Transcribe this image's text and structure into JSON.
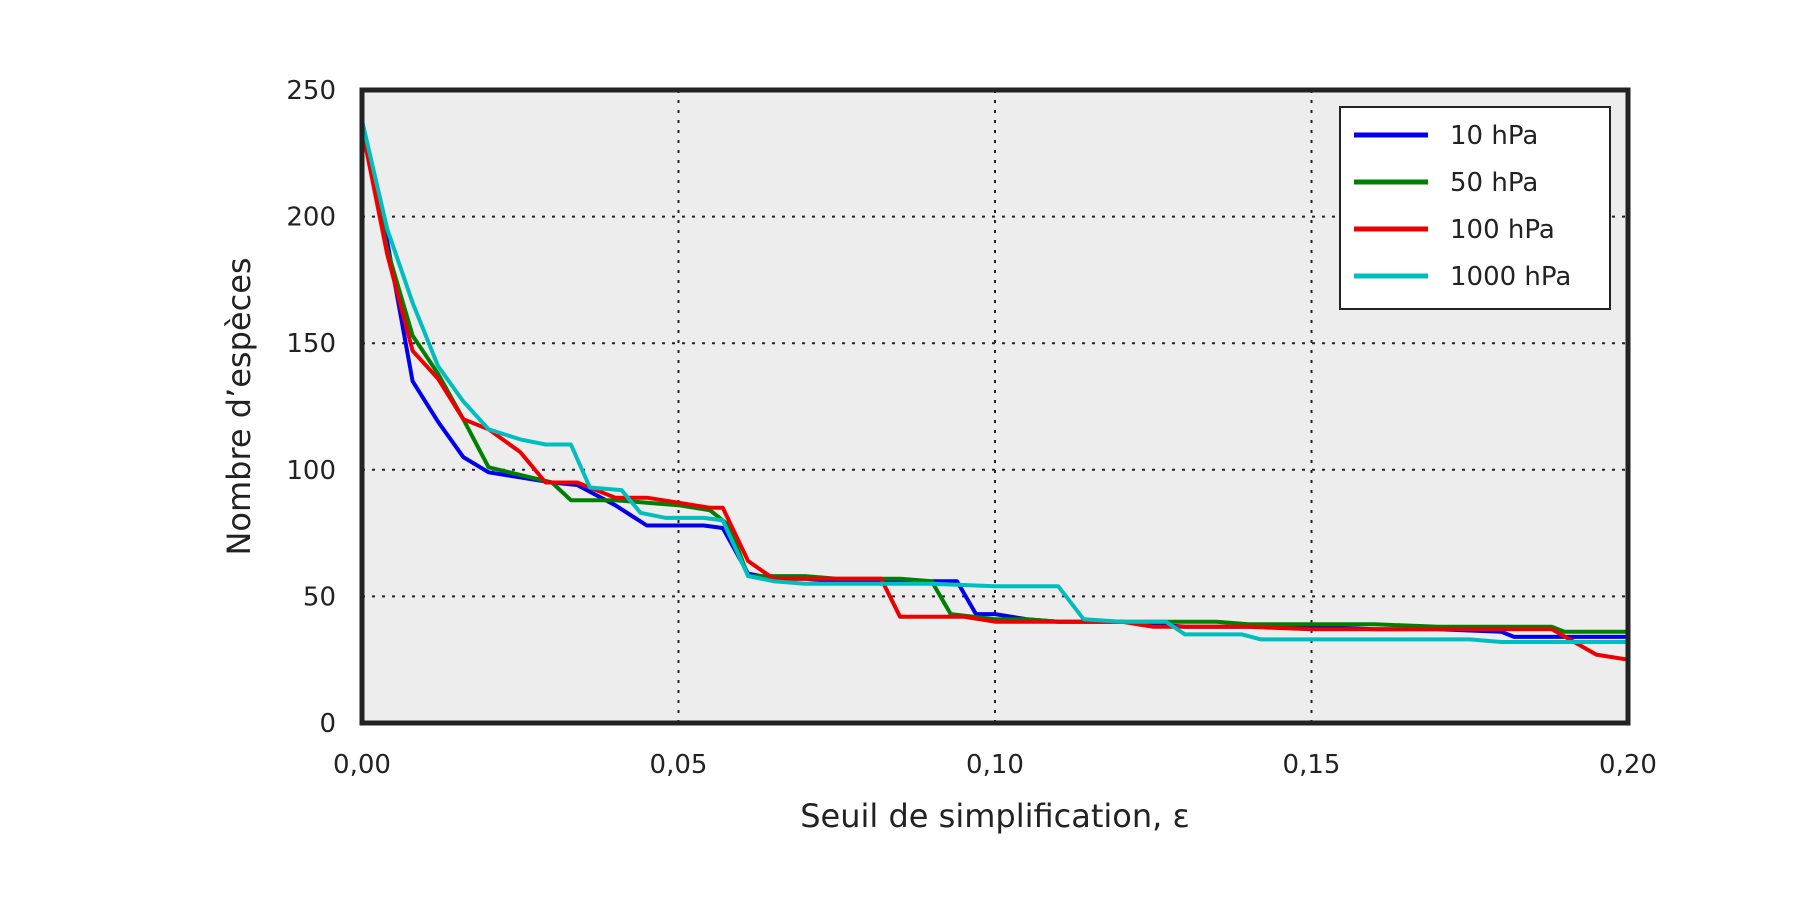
{
  "chart_data": {
    "type": "line",
    "title": "",
    "xlabel": "Seuil de simplification, ε",
    "ylabel": "Nombre d’espèces",
    "xlim": [
      0,
      0.2
    ],
    "ylim": [
      0,
      250
    ],
    "xticks": [
      0,
      0.05,
      0.1,
      0.15,
      0.2
    ],
    "xtick_labels": [
      "0,00",
      "0,05",
      "0,10",
      "0,15",
      "0,20"
    ],
    "yticks": [
      0,
      50,
      100,
      150,
      200,
      250
    ],
    "ytick_labels": [
      "0",
      "50",
      "100",
      "150",
      "200",
      "250"
    ],
    "grid": true,
    "legend_position": "top-right",
    "background_color": "#ededed",
    "frame_color": "#222222",
    "series": [
      {
        "name": "10 hPa",
        "color": "#0000ee",
        "points": [
          [
            0.0,
            235
          ],
          [
            0.004,
            190
          ],
          [
            0.008,
            135
          ],
          [
            0.012,
            119
          ],
          [
            0.016,
            105
          ],
          [
            0.02,
            99
          ],
          [
            0.025,
            97
          ],
          [
            0.03,
            95
          ],
          [
            0.034,
            94
          ],
          [
            0.04,
            86
          ],
          [
            0.045,
            78
          ],
          [
            0.05,
            78
          ],
          [
            0.054,
            78
          ],
          [
            0.057,
            77
          ],
          [
            0.061,
            59
          ],
          [
            0.065,
            57
          ],
          [
            0.07,
            57
          ],
          [
            0.075,
            56
          ],
          [
            0.08,
            56
          ],
          [
            0.085,
            56
          ],
          [
            0.09,
            56
          ],
          [
            0.094,
            56
          ],
          [
            0.097,
            43
          ],
          [
            0.1,
            43
          ],
          [
            0.105,
            41
          ],
          [
            0.11,
            40
          ],
          [
            0.115,
            40
          ],
          [
            0.12,
            40
          ],
          [
            0.125,
            39
          ],
          [
            0.13,
            38
          ],
          [
            0.14,
            38
          ],
          [
            0.15,
            38
          ],
          [
            0.16,
            37
          ],
          [
            0.17,
            37
          ],
          [
            0.18,
            36
          ],
          [
            0.182,
            34
          ],
          [
            0.19,
            34
          ],
          [
            0.2,
            34
          ]
        ]
      },
      {
        "name": "50 hPa",
        "color": "#008000",
        "points": [
          [
            0.0,
            235
          ],
          [
            0.004,
            187
          ],
          [
            0.008,
            153
          ],
          [
            0.012,
            138
          ],
          [
            0.016,
            120
          ],
          [
            0.02,
            101
          ],
          [
            0.025,
            98
          ],
          [
            0.03,
            95
          ],
          [
            0.033,
            88
          ],
          [
            0.037,
            88
          ],
          [
            0.04,
            88
          ],
          [
            0.045,
            87
          ],
          [
            0.05,
            86
          ],
          [
            0.055,
            84
          ],
          [
            0.058,
            78
          ],
          [
            0.061,
            58
          ],
          [
            0.065,
            58
          ],
          [
            0.07,
            58
          ],
          [
            0.075,
            57
          ],
          [
            0.08,
            57
          ],
          [
            0.085,
            57
          ],
          [
            0.09,
            56
          ],
          [
            0.093,
            43
          ],
          [
            0.1,
            41
          ],
          [
            0.105,
            41
          ],
          [
            0.11,
            40
          ],
          [
            0.115,
            40
          ],
          [
            0.12,
            40
          ],
          [
            0.13,
            40
          ],
          [
            0.135,
            40
          ],
          [
            0.14,
            39
          ],
          [
            0.15,
            39
          ],
          [
            0.16,
            39
          ],
          [
            0.17,
            38
          ],
          [
            0.18,
            38
          ],
          [
            0.188,
            38
          ],
          [
            0.19,
            36
          ],
          [
            0.2,
            36
          ]
        ]
      },
      {
        "name": "100 hPa",
        "color": "#ee0000",
        "points": [
          [
            0.0,
            235
          ],
          [
            0.004,
            185
          ],
          [
            0.008,
            147
          ],
          [
            0.012,
            136
          ],
          [
            0.016,
            120
          ],
          [
            0.02,
            116
          ],
          [
            0.025,
            107
          ],
          [
            0.029,
            95
          ],
          [
            0.034,
            95
          ],
          [
            0.04,
            89
          ],
          [
            0.045,
            89
          ],
          [
            0.05,
            87
          ],
          [
            0.055,
            85
          ],
          [
            0.057,
            85
          ],
          [
            0.061,
            64
          ],
          [
            0.065,
            57
          ],
          [
            0.07,
            57
          ],
          [
            0.075,
            57
          ],
          [
            0.08,
            57
          ],
          [
            0.082,
            57
          ],
          [
            0.085,
            42
          ],
          [
            0.09,
            42
          ],
          [
            0.095,
            42
          ],
          [
            0.1,
            40
          ],
          [
            0.105,
            40
          ],
          [
            0.11,
            40
          ],
          [
            0.115,
            40
          ],
          [
            0.12,
            40
          ],
          [
            0.125,
            38
          ],
          [
            0.13,
            38
          ],
          [
            0.14,
            38
          ],
          [
            0.15,
            37
          ],
          [
            0.16,
            37
          ],
          [
            0.17,
            37
          ],
          [
            0.18,
            37
          ],
          [
            0.188,
            37
          ],
          [
            0.195,
            27
          ],
          [
            0.2,
            25
          ]
        ]
      },
      {
        "name": "1000 hPa",
        "color": "#00bebe",
        "points": [
          [
            0.0,
            238
          ],
          [
            0.004,
            195
          ],
          [
            0.008,
            166
          ],
          [
            0.012,
            141
          ],
          [
            0.016,
            127
          ],
          [
            0.02,
            116
          ],
          [
            0.025,
            112
          ],
          [
            0.029,
            110
          ],
          [
            0.033,
            110
          ],
          [
            0.036,
            93
          ],
          [
            0.041,
            92
          ],
          [
            0.044,
            83
          ],
          [
            0.048,
            81
          ],
          [
            0.054,
            81
          ],
          [
            0.057,
            80
          ],
          [
            0.061,
            58
          ],
          [
            0.065,
            56
          ],
          [
            0.07,
            55
          ],
          [
            0.075,
            55
          ],
          [
            0.08,
            55
          ],
          [
            0.09,
            55
          ],
          [
            0.1,
            54
          ],
          [
            0.105,
            54
          ],
          [
            0.11,
            54
          ],
          [
            0.114,
            41
          ],
          [
            0.12,
            40
          ],
          [
            0.125,
            40
          ],
          [
            0.127,
            40
          ],
          [
            0.13,
            35
          ],
          [
            0.135,
            35
          ],
          [
            0.139,
            35
          ],
          [
            0.142,
            33
          ],
          [
            0.15,
            33
          ],
          [
            0.16,
            33
          ],
          [
            0.17,
            33
          ],
          [
            0.175,
            33
          ],
          [
            0.18,
            32
          ],
          [
            0.19,
            32
          ],
          [
            0.2,
            32
          ]
        ]
      }
    ]
  }
}
